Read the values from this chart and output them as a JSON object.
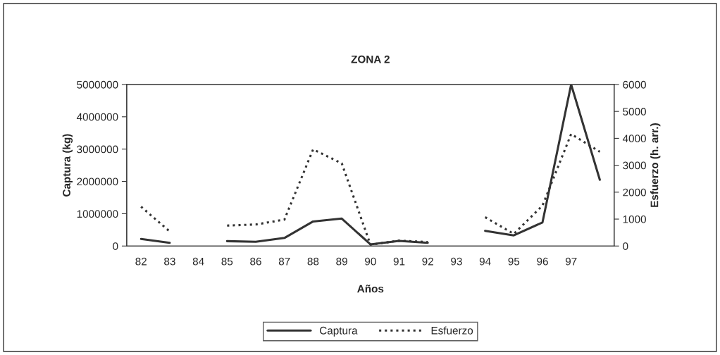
{
  "chart_data": {
    "type": "line",
    "title": "ZONA 2",
    "xlabel": "Años",
    "ylabel": "Captura (kg)",
    "y2label": "Esfuerzo (h. arr.)",
    "categories": [
      "82",
      "83",
      "84",
      "85",
      "86",
      "87",
      "88",
      "89",
      "90",
      "91",
      "92",
      "93",
      "94",
      "95",
      "96",
      "97",
      null
    ],
    "series": [
      {
        "name": "Captura",
        "color": "#333333",
        "line_style": "solid",
        "values": [
          220000,
          100000,
          null,
          150000,
          130000,
          250000,
          760000,
          850000,
          50000,
          160000,
          100000,
          null,
          470000,
          330000,
          730000,
          5000000,
          2050000
        ]
      },
      {
        "name": "Esfuerzo",
        "color": "#333333",
        "line_style": "dotted",
        "axis": "y2",
        "values": [
          1460,
          540,
          null,
          760,
          800,
          980,
          3590,
          3070,
          50,
          200,
          150,
          null,
          1070,
          450,
          1500,
          4160,
          3500
        ]
      }
    ],
    "ylim": [
      0,
      5000000
    ],
    "yticks": [
      0,
      1000000,
      2000000,
      3000000,
      4000000,
      5000000
    ],
    "y2lim": [
      0,
      6000
    ],
    "y2ticks": [
      0,
      1000,
      2000,
      3000,
      4000,
      5000,
      6000
    ],
    "grid": false,
    "legend": "bottom",
    "marker": "none"
  }
}
